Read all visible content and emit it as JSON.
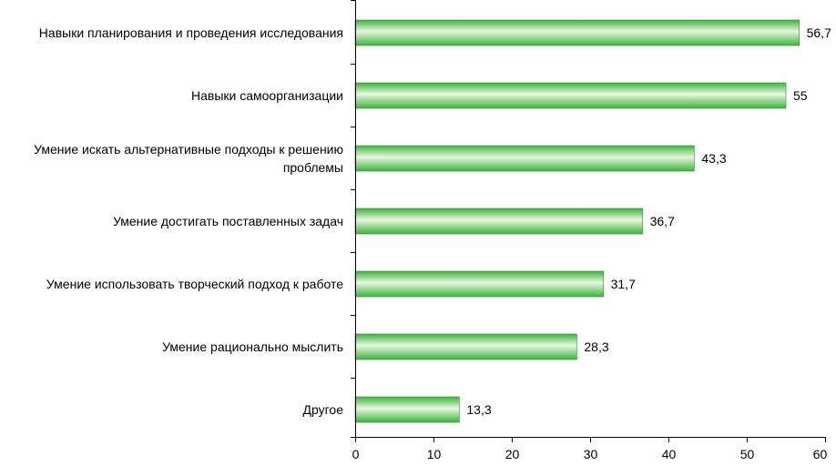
{
  "chart_data": {
    "type": "bar",
    "orientation": "horizontal",
    "title": "",
    "xlabel": "",
    "ylabel": "",
    "categories": [
      "Навыки планирования и проведения исследования",
      "Навыки самоорганизации",
      "Умение искать альтернативные подходы к решению проблемы",
      "Умение достигать поставленных задач",
      "Умение использовать творческий подход к работе",
      "Умение рационально мыслить",
      "Другое"
    ],
    "category_lines": [
      [
        "Навыки планирования и проведения исследования"
      ],
      [
        "Навыки самоорганизации"
      ],
      [
        "Умение искать альтернативные подходы к решению",
        "проблемы"
      ],
      [
        "Умение достигать поставленных задач"
      ],
      [
        "Умение использовать творческий подход к работе"
      ],
      [
        "Умение рационально мыслить"
      ],
      [
        "Другое"
      ]
    ],
    "values": [
      56.7,
      55,
      43.3,
      36.7,
      31.7,
      28.3,
      13.3
    ],
    "value_labels": [
      "56,7",
      "55",
      "43,3",
      "36,7",
      "31,7",
      "28,3",
      "13,3"
    ],
    "xlim": [
      0,
      60
    ],
    "xticks": [
      0,
      10,
      20,
      30,
      40,
      50,
      60
    ],
    "grid": false,
    "legend": "none",
    "bar_color": "#3cb33c",
    "bar_highlight": "#e8f7e0",
    "bar_outline": "#2e8a2e"
  }
}
